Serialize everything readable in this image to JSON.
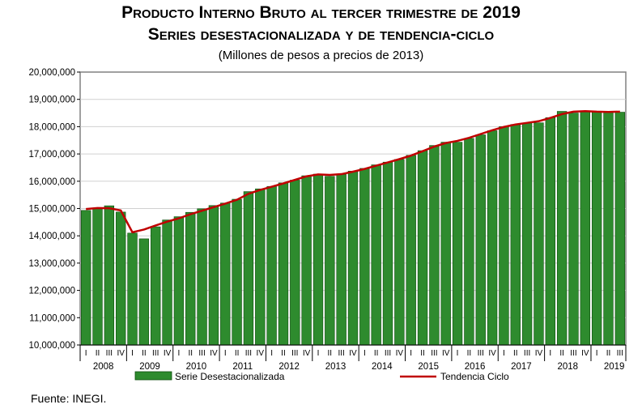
{
  "title_line1": "Producto Interno Bruto al tercer trimestre de 2019",
  "title_line2": "Series desestacionalizada y de tendencia-ciclo",
  "subtitle": "(Millones de pesos a precios de 2013)",
  "source": "Fuente: INEGI.",
  "colors": {
    "bar": "#2e8b2e",
    "bar_edge": "#0d4d0d",
    "trend": "#c00000",
    "plot_bg": "#ffffff",
    "frame": "#808080"
  },
  "chart_data": {
    "type": "bar",
    "ylim": [
      10000000,
      20000000
    ],
    "y_ticks": [
      "10,000,000",
      "11,000,000",
      "12,000,000",
      "13,000,000",
      "14,000,000",
      "15,000,000",
      "16,000,000",
      "17,000,000",
      "18,000,000",
      "19,000,000",
      "20,000,000"
    ],
    "y_tick_values": [
      10000000,
      11000000,
      12000000,
      13000000,
      14000000,
      15000000,
      16000000,
      17000000,
      18000000,
      19000000,
      20000000
    ],
    "quarter_labels": [
      "I",
      "II",
      "III",
      "IV",
      "I",
      "II",
      "III",
      "IV",
      "I",
      "II",
      "III",
      "IV",
      "I",
      "II",
      "III",
      "IV",
      "I",
      "II",
      "III",
      "IV",
      "I",
      "II",
      "III",
      "IV",
      "I",
      "II",
      "III",
      "IV",
      "I",
      "II",
      "III",
      "IV",
      "I",
      "II",
      "III",
      "IV",
      "I",
      "II",
      "III",
      "IV",
      "I",
      "II",
      "III",
      "IV",
      "I",
      "II",
      "III"
    ],
    "years": [
      "2008",
      "2009",
      "2010",
      "2011",
      "2012",
      "2013",
      "2014",
      "2015",
      "2016",
      "2017",
      "2018",
      "2019"
    ],
    "legend_position": "bottom",
    "series": [
      {
        "name": "Serie Desestacionalizada",
        "kind": "bar",
        "values": [
          14930000,
          15000000,
          15100000,
          14870000,
          14100000,
          13890000,
          14330000,
          14580000,
          14700000,
          14860000,
          14990000,
          15110000,
          15200000,
          15340000,
          15620000,
          15720000,
          15810000,
          15940000,
          16040000,
          16200000,
          16260000,
          16180000,
          16250000,
          16370000,
          16470000,
          16600000,
          16700000,
          16800000,
          16950000,
          17120000,
          17310000,
          17430000,
          17430000,
          17570000,
          17700000,
          17850000,
          18000000,
          18080000,
          18130000,
          18140000,
          18330000,
          18560000,
          18500000,
          18560000,
          18530000,
          18520000,
          18530000
        ]
      },
      {
        "name": "Tendencia Ciclo",
        "kind": "line",
        "values": [
          14980000,
          15020000,
          15010000,
          14930000,
          14130000,
          14230000,
          14380000,
          14520000,
          14640000,
          14790000,
          14920000,
          15050000,
          15180000,
          15320000,
          15540000,
          15680000,
          15800000,
          15920000,
          16050000,
          16180000,
          16250000,
          16230000,
          16260000,
          16350000,
          16450000,
          16570000,
          16690000,
          16810000,
          16940000,
          17100000,
          17270000,
          17400000,
          17480000,
          17590000,
          17730000,
          17870000,
          17990000,
          18080000,
          18140000,
          18200000,
          18320000,
          18460000,
          18550000,
          18570000,
          18550000,
          18540000,
          18550000
        ]
      }
    ]
  }
}
